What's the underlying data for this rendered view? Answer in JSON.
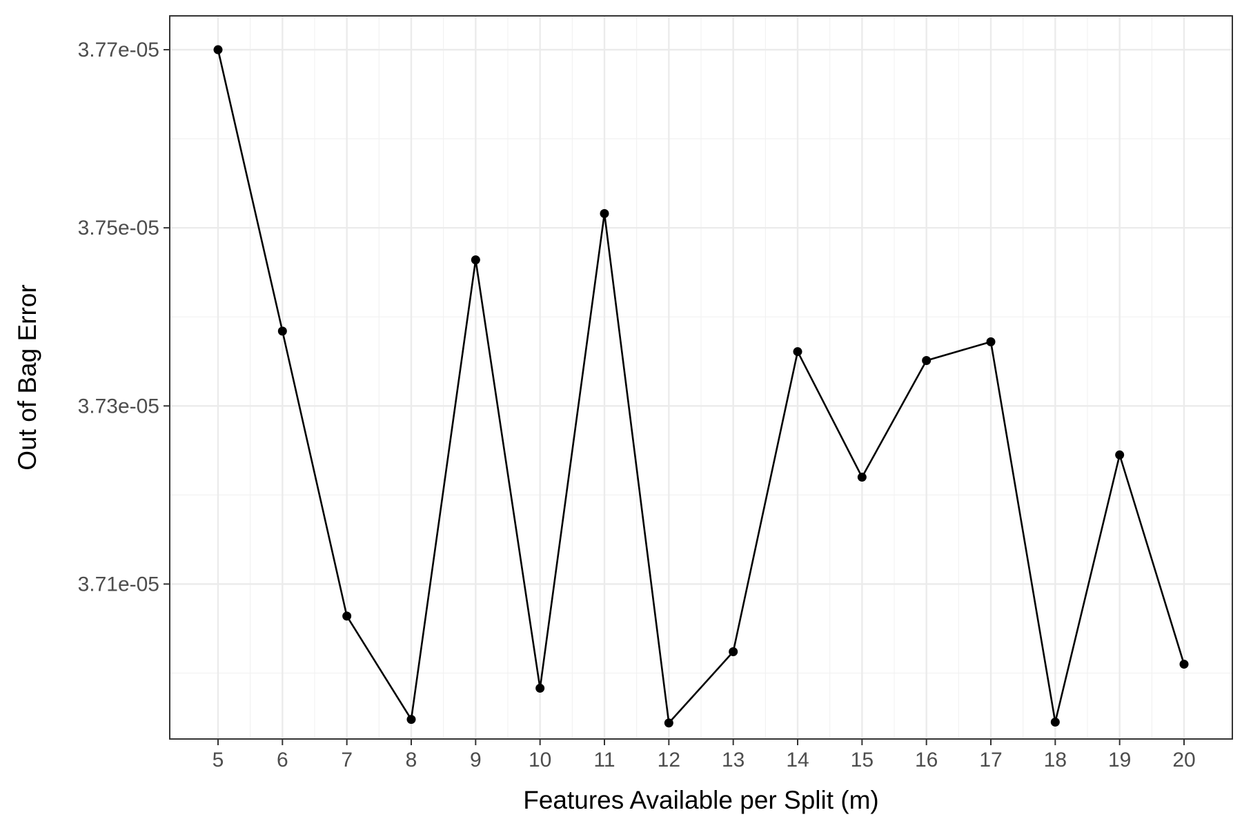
{
  "chart_data": {
    "type": "line",
    "title": "",
    "xlabel": "Features Available per Split (m)",
    "ylabel": "Out of Bag Error",
    "x": [
      5,
      6,
      7,
      8,
      9,
      10,
      11,
      12,
      13,
      14,
      15,
      16,
      17,
      18,
      19,
      20
    ],
    "series": [
      {
        "values": [
          3.77e-05,
          3.7384e-05,
          3.7064e-05,
          3.6948e-05,
          3.7464e-05,
          3.6983e-05,
          3.7516e-05,
          3.6944e-05,
          3.7024e-05,
          3.7361e-05,
          3.722e-05,
          3.7351e-05,
          3.7372e-05,
          3.6945e-05,
          3.7245e-05,
          3.701e-05
        ],
        "color": "#000000"
      }
    ],
    "x_ticks": [
      "5",
      "6",
      "7",
      "8",
      "9",
      "10",
      "11",
      "12",
      "13",
      "14",
      "15",
      "16",
      "17",
      "18",
      "19",
      "20"
    ],
    "y_ticks": [
      {
        "value": 3.77e-05,
        "label": "3.77e-05"
      },
      {
        "value": 3.75e-05,
        "label": "3.75e-05"
      },
      {
        "value": 3.73e-05,
        "label": "3.73e-05"
      },
      {
        "value": 3.71e-05,
        "label": "3.71e-05"
      }
    ],
    "xlim": [
      4.25,
      20.75
    ],
    "ylim": [
      3.6926e-05,
      3.7738e-05
    ],
    "grid": true,
    "legend": "none"
  }
}
